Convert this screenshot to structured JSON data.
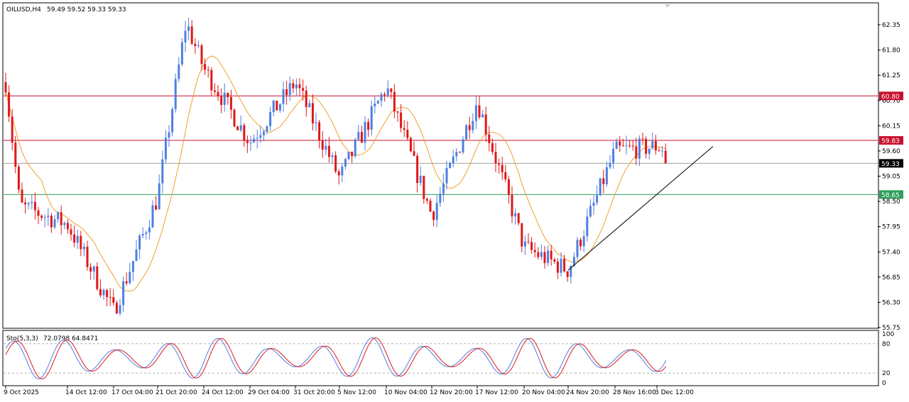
{
  "header": {
    "symbol": "OILUSD,H4",
    "ohlc": "59.49 59.52 59.33 59.33"
  },
  "indicator": {
    "name": "Sto(5,3,3)",
    "values": "72.0798 64.8471",
    "levels": [
      20,
      80
    ],
    "scale_labels": [
      "100",
      "80",
      "20",
      "0"
    ]
  },
  "colors": {
    "bull": "#4f7fe0",
    "bear": "#e01818",
    "ma": "#f0a030",
    "resistance": "#c8102e",
    "support": "#2e9e5a",
    "current": "#a0a0a0",
    "stoch_main": "#4f7fe0",
    "stoch_signal": "#e01818",
    "trendline": "#000000"
  },
  "chart_data": {
    "type": "candlestick",
    "symbol": "OILUSD",
    "timeframe": "H4",
    "ylim": [
      55.75,
      62.6
    ],
    "y_ticks": [
      "62.35",
      "61.80",
      "61.25",
      "60.70",
      "60.15",
      "59.60",
      "59.05",
      "58.50",
      "57.95",
      "57.40",
      "56.85",
      "56.30",
      "55.75"
    ],
    "x_ticks": [
      "9 Oct 2025",
      "14 Oct 12:00",
      "17 Oct 04:00",
      "21 Oct 20:00",
      "24 Oct 12:00",
      "29 Oct 04:00",
      "31 Oct 20:00",
      "5 Nov 12:00",
      "10 Nov 04:00",
      "12 Nov 20:00",
      "17 Nov 12:00",
      "20 Nov 04:00",
      "24 Nov 20:00",
      "28 Nov 16:00",
      "3 Dec 12:00"
    ],
    "horizontal_levels": [
      {
        "price": 60.8,
        "label": "60.80",
        "kind": "resistance"
      },
      {
        "price": 59.83,
        "label": "59.83",
        "kind": "resistance"
      },
      {
        "price": 59.33,
        "label": "59.33",
        "kind": "current"
      },
      {
        "price": 58.65,
        "label": "58.65",
        "kind": "support"
      }
    ],
    "trendline": {
      "from": {
        "time": "24 Nov 20:00",
        "price": 57.0
      },
      "to": {
        "time": "5 Dec",
        "price": 59.7
      }
    },
    "key_points": [
      {
        "time": "9 Oct 2025",
        "price": 61.1
      },
      {
        "time": "10 Oct",
        "price": 58.4
      },
      {
        "time": "14 Oct 12:00",
        "price": 58.0
      },
      {
        "time": "17 Oct 04:00",
        "price": 56.1
      },
      {
        "time": "21 Oct 20:00",
        "price": 58.6
      },
      {
        "time": "23 Oct",
        "price": 62.4
      },
      {
        "time": "24 Oct 12:00",
        "price": 61.4
      },
      {
        "time": "29 Oct 04:00",
        "price": 59.8
      },
      {
        "time": "31 Oct 20:00",
        "price": 61.1
      },
      {
        "time": "5 Nov 12:00",
        "price": 59.0
      },
      {
        "time": "10 Nov 04:00",
        "price": 61.0
      },
      {
        "time": "12 Nov 20:00",
        "price": 58.2
      },
      {
        "time": "17 Nov 12:00",
        "price": 60.7
      },
      {
        "time": "20 Nov 04:00",
        "price": 57.5
      },
      {
        "time": "24 Nov 20:00",
        "price": 57.0
      },
      {
        "time": "28 Nov 16:00",
        "price": 59.6
      },
      {
        "time": "3 Dec 12:00",
        "price": 59.7
      },
      {
        "time": "5 Dec",
        "price": 59.33
      }
    ]
  }
}
